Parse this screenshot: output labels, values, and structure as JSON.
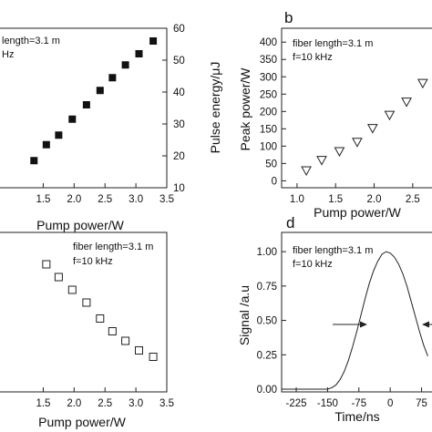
{
  "chart_data": [
    {
      "panel": "a",
      "type": "scatter",
      "xlabel": "Pump power/W",
      "ylabel_right": "Pulse energy/μJ",
      "xlim": [
        0.8,
        3.5
      ],
      "ylim": [
        10,
        60
      ],
      "xticks": [
        "1.5",
        "2.0",
        "2.5",
        "3.0",
        "3.5"
      ],
      "yticks": [
        "10",
        "20",
        "30",
        "40",
        "50",
        "60"
      ],
      "annotations": [
        "length=3.1 m",
        "Hz"
      ],
      "marker": "filled-square",
      "x": [
        1.35,
        1.55,
        1.75,
        1.97,
        2.2,
        2.42,
        2.62,
        2.83,
        3.05,
        3.28
      ],
      "y": [
        18.5,
        23.5,
        26.5,
        31.5,
        36,
        40.5,
        44.5,
        48.5,
        52,
        56
      ]
    },
    {
      "panel": "b",
      "type": "scatter",
      "letter": "b",
      "xlabel": "Pump power/W",
      "ylabel": "Peak power/W",
      "xlim": [
        0.8,
        2.75
      ],
      "ylim": [
        -20,
        440
      ],
      "xticks": [
        "1.0",
        "1.5",
        "2.0",
        "2.5"
      ],
      "xtick_values": [
        1.0,
        1.5,
        2.0,
        2.5
      ],
      "yticks": [
        "0",
        "50",
        "100",
        "150",
        "200",
        "250",
        "300",
        "350",
        "400"
      ],
      "annotations": [
        "fiber length=3.1 m",
        "f=10 kHz"
      ],
      "marker": "open-triangle-down",
      "x": [
        1.12,
        1.32,
        1.55,
        1.78,
        1.98,
        2.2,
        2.42,
        2.63
      ],
      "y": [
        30,
        60,
        85,
        112,
        152,
        190,
        228,
        282
      ]
    },
    {
      "panel": "c",
      "type": "scatter",
      "xlabel": "Pump power/W",
      "xlim": [
        0.8,
        3.5
      ],
      "xticks": [
        "1.5",
        "2.0",
        "2.5",
        "3.0",
        "3.5"
      ],
      "annotations": [
        "fiber length=3.1 m",
        "f=10 kHz"
      ],
      "marker": "open-square",
      "x": [
        1.55,
        1.75,
        1.97,
        2.2,
        2.42,
        2.62,
        2.83,
        3.05,
        3.28
      ],
      "y": [
        0.8,
        0.72,
        0.64,
        0.56,
        0.46,
        0.38,
        0.32,
        0.26,
        0.22
      ]
    },
    {
      "panel": "d",
      "type": "line",
      "letter": "d",
      "xlabel": "Time/ns",
      "ylabel": "Signal /a.u",
      "xlim": [
        -260,
        100
      ],
      "ylim": [
        -0.02,
        1.14
      ],
      "xticks": [
        "-225",
        "-150",
        "-75",
        "0",
        "75"
      ],
      "xtick_values": [
        -225,
        -150,
        -75,
        0,
        75
      ],
      "yticks": [
        "0.00",
        "0.25",
        "0.50",
        "0.75",
        "1.00"
      ],
      "ytick_values": [
        0,
        0.25,
        0.5,
        0.75,
        1.0
      ],
      "annotations": [
        "fiber length=3.1 m",
        "f=10 kHz"
      ],
      "series": [
        {
          "x": [
            -150,
            -140,
            -130,
            -120,
            -110,
            -100,
            -90,
            -80,
            -70,
            -60,
            -50,
            -40,
            -30,
            -20,
            -10,
            0,
            10,
            20,
            30,
            40,
            50,
            60,
            70,
            80,
            90
          ],
          "y": [
            0.0,
            0.01,
            0.03,
            0.07,
            0.13,
            0.21,
            0.31,
            0.42,
            0.54,
            0.66,
            0.77,
            0.86,
            0.93,
            0.98,
            1.0,
            0.99,
            0.96,
            0.91,
            0.84,
            0.75,
            0.64,
            0.53,
            0.42,
            0.32,
            0.24
          ]
        }
      ]
    }
  ]
}
